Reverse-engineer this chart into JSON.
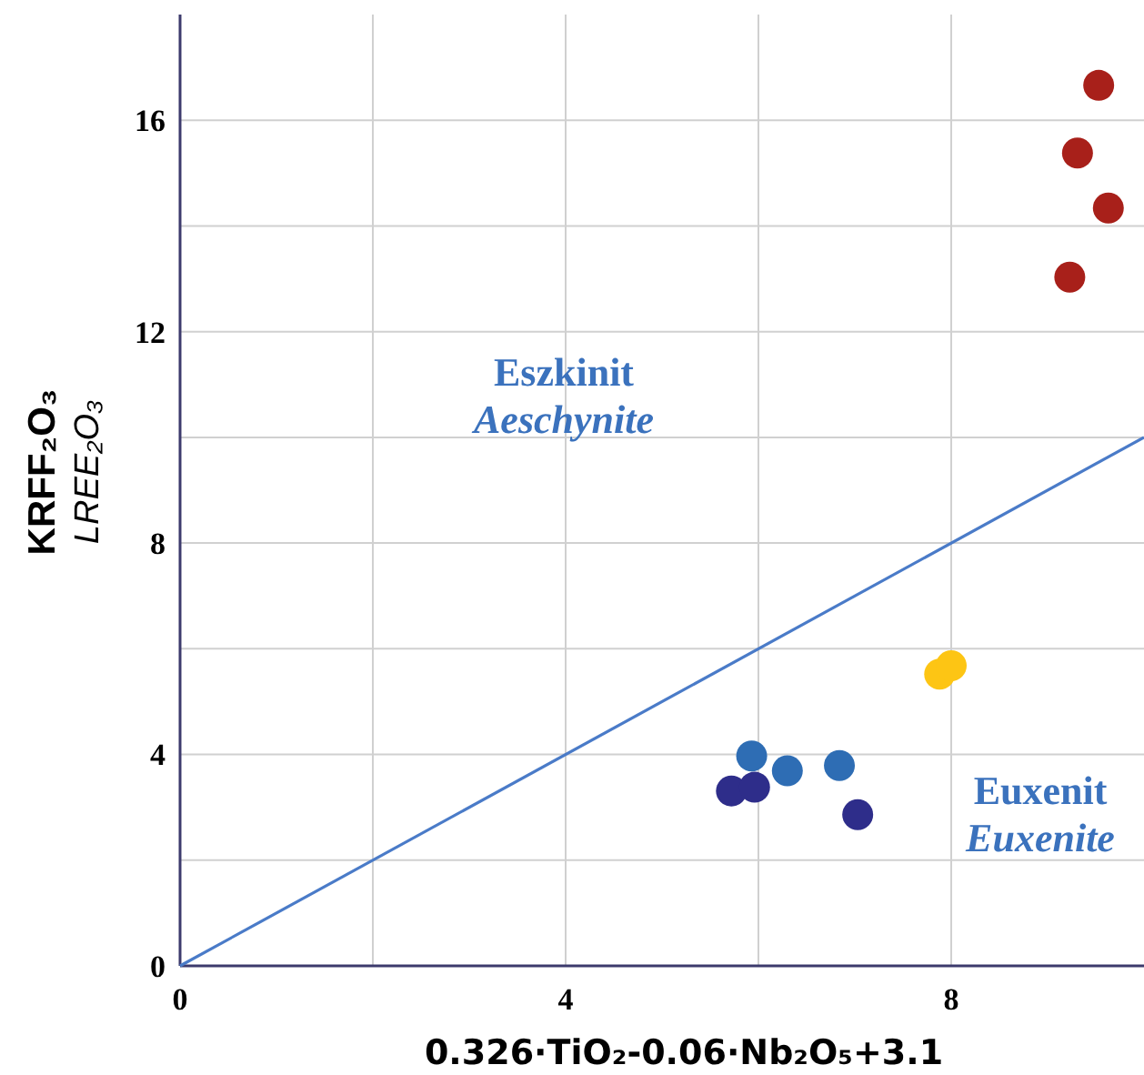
{
  "chart_data": {
    "type": "scatter",
    "xlabel": "0.326·TiO₂-0.06·Nb₂O₅+3.1",
    "ylabel": "KRFF₂O₃\nLREE₂O₃",
    "xlim": [
      0,
      10
    ],
    "ylim": [
      0,
      18
    ],
    "xticks": [
      0,
      {
        "value": 2,
        "label": null
      },
      4,
      {
        "value": 6,
        "label": null
      },
      8
    ],
    "yticks": [
      0,
      {
        "value": 2,
        "label": null
      },
      4,
      {
        "value": 6,
        "label": null
      },
      8,
      {
        "value": 10,
        "label": null
      },
      12,
      {
        "value": 14,
        "label": null
      },
      16
    ],
    "grid": true,
    "annotations": [
      "Eszkinit",
      "Aeschynite",
      "Euxenit",
      "Euxenite"
    ],
    "series": [
      {
        "type": "line",
        "color": "#4a7bc8",
        "x": [
          0,
          10
        ],
        "values": [
          0,
          10
        ]
      },
      {
        "marker": "circle",
        "color": "#a8201a",
        "x": [
          9.53,
          9.31,
          9.63,
          9.23
        ],
        "values": [
          16.66,
          15.38,
          14.34,
          13.03
        ]
      },
      {
        "marker": "circle",
        "color": "#fdc514",
        "x": [
          7.88,
          8.0
        ],
        "values": [
          5.52,
          5.68
        ]
      },
      {
        "marker": "circle",
        "color": "#2e6db4",
        "x": [
          5.93,
          6.3,
          6.84
        ],
        "values": [
          3.97,
          3.69,
          3.79
        ]
      },
      {
        "marker": "circle",
        "color": "#2e2d8a",
        "x": [
          5.72,
          5.96,
          7.03
        ],
        "values": [
          3.31,
          3.38,
          2.86
        ]
      }
    ]
  }
}
